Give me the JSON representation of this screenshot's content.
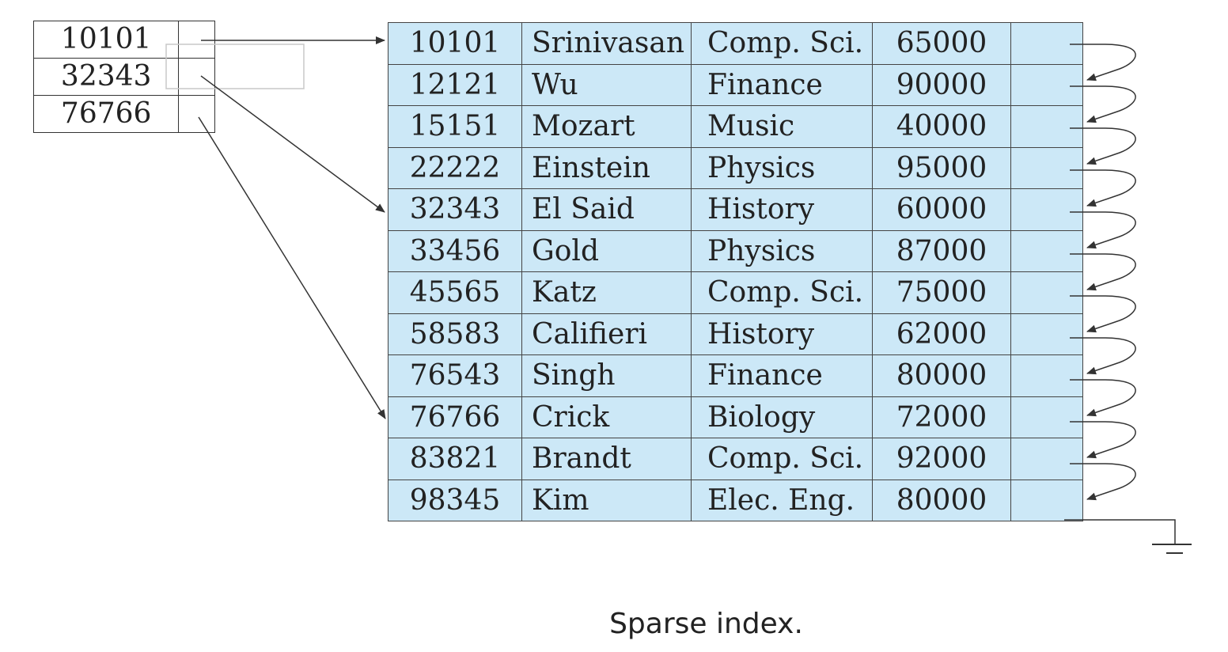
{
  "index": [
    {
      "key": "10101"
    },
    {
      "key": "32343"
    },
    {
      "key": "76766"
    }
  ],
  "records": [
    {
      "id": "10101",
      "name": "Srinivasan",
      "dept": "Comp. Sci.",
      "salary": "65000"
    },
    {
      "id": "12121",
      "name": "Wu",
      "dept": "Finance",
      "salary": "90000"
    },
    {
      "id": "15151",
      "name": "Mozart",
      "dept": "Music",
      "salary": "40000"
    },
    {
      "id": "22222",
      "name": "Einstein",
      "dept": "Physics",
      "salary": "95000"
    },
    {
      "id": "32343",
      "name": "El Said",
      "dept": "History",
      "salary": "60000"
    },
    {
      "id": "33456",
      "name": "Gold",
      "dept": "Physics",
      "salary": "87000"
    },
    {
      "id": "45565",
      "name": "Katz",
      "dept": "Comp. Sci.",
      "salary": "75000"
    },
    {
      "id": "58583",
      "name": "Califieri",
      "dept": "History",
      "salary": "62000"
    },
    {
      "id": "76543",
      "name": "Singh",
      "dept": "Finance",
      "salary": "80000"
    },
    {
      "id": "76766",
      "name": "Crick",
      "dept": "Biology",
      "salary": "72000"
    },
    {
      "id": "83821",
      "name": "Brandt",
      "dept": "Comp. Sci.",
      "salary": "92000"
    },
    {
      "id": "98345",
      "name": "Kim",
      "dept": "Elec. Eng.",
      "salary": "80000"
    }
  ],
  "caption": "Sparse index.",
  "colors": {
    "record_fill": "#cce8f7",
    "line": "#333333"
  }
}
